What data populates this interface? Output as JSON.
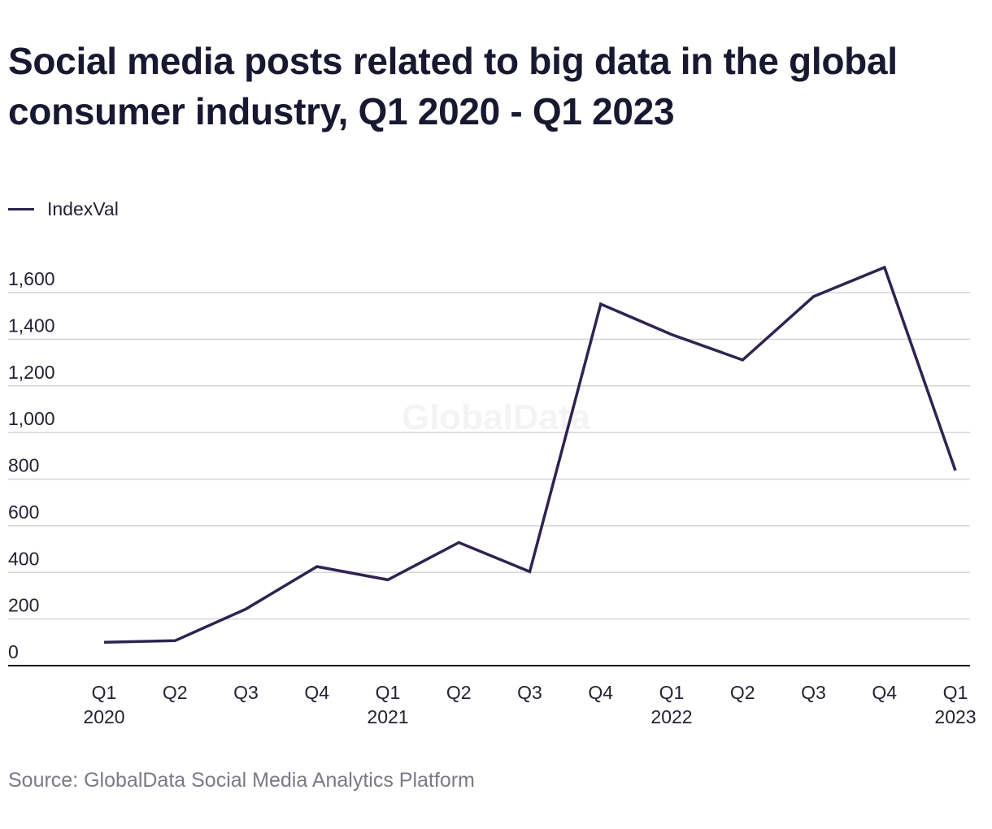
{
  "title": "Social media posts related to big data in the global consumer industry, Q1 2020 - Q1 2023",
  "source": "Source: GlobalData Social Media Analytics Platform",
  "watermark": "GlobalData",
  "legend": {
    "label": "IndexVal",
    "color": "#2f2350"
  },
  "chart_data": {
    "type": "line",
    "title": "Social media posts related to big data in the global consumer industry, Q1 2020 - Q1 2023",
    "xlabel": "",
    "ylabel": "",
    "ylim": [
      0,
      1600
    ],
    "yticks": [
      0,
      200,
      400,
      600,
      800,
      1000,
      1200,
      1400,
      1600
    ],
    "ytick_labels": [
      "0",
      "200",
      "400",
      "600",
      "800",
      "1,000",
      "1,200",
      "1,400",
      "1,600"
    ],
    "grid": true,
    "legend_position": "top-left",
    "categories": [
      {
        "quarter": "Q1",
        "year": "2020"
      },
      {
        "quarter": "Q2",
        "year": ""
      },
      {
        "quarter": "Q3",
        "year": ""
      },
      {
        "quarter": "Q4",
        "year": ""
      },
      {
        "quarter": "Q1",
        "year": "2021"
      },
      {
        "quarter": "Q2",
        "year": ""
      },
      {
        "quarter": "Q3",
        "year": ""
      },
      {
        "quarter": "Q4",
        "year": ""
      },
      {
        "quarter": "Q1",
        "year": "2022"
      },
      {
        "quarter": "Q2",
        "year": ""
      },
      {
        "quarter": "Q3",
        "year": ""
      },
      {
        "quarter": "Q4",
        "year": ""
      },
      {
        "quarter": "Q1",
        "year": "2023"
      }
    ],
    "series": [
      {
        "name": "IndexVal",
        "color": "#2f2350",
        "values": [
          100,
          107,
          243,
          425,
          368,
          528,
          403,
          1551,
          1420,
          1311,
          1583,
          1708,
          837
        ]
      }
    ]
  }
}
